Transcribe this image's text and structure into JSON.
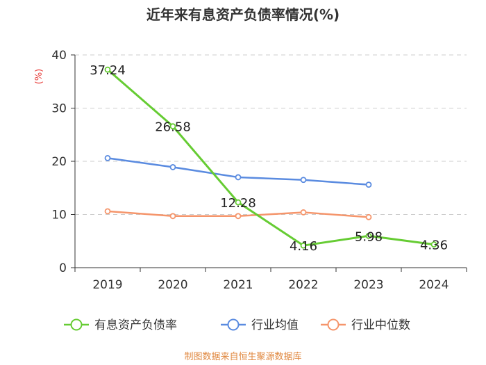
{
  "chart_data": {
    "type": "line",
    "title": "近年来有息资产负债率情况(%)",
    "ylabel": "(%)",
    "categories": [
      "2019",
      "2020",
      "2021",
      "2022",
      "2023",
      "2024"
    ],
    "ylim": [
      0,
      40
    ],
    "yticks": [
      "0",
      "10",
      "20",
      "30",
      "40"
    ],
    "grid": true,
    "legend_position": "bottom",
    "series": [
      {
        "name": "有息资产负债率",
        "color": "#66cc33",
        "values": [
          37.24,
          26.58,
          12.28,
          4.16,
          5.98,
          4.36
        ],
        "labels": [
          "37.24",
          "26.58",
          "12.28",
          "4.16",
          "5.98",
          "4.36"
        ]
      },
      {
        "name": "行业均值",
        "color": "#5a8be0",
        "values": [
          20.6,
          18.9,
          17.0,
          16.5,
          15.6,
          null
        ]
      },
      {
        "name": "行业中位数",
        "color": "#f5956b",
        "values": [
          10.6,
          9.7,
          9.7,
          10.4,
          9.5,
          null
        ]
      }
    ],
    "source": "制图数据来自恒生聚源数据库"
  }
}
